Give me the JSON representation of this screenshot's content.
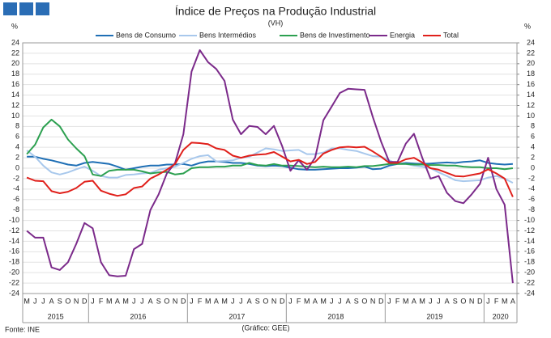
{
  "chart_data": {
    "type": "line",
    "title": "Índice de Preços na Produção Industrial",
    "subtitle": "(VH)",
    "y_unit": "%",
    "source": "Fonte: INE",
    "credit": "(Gráfico: GEE)",
    "categories": [
      "M",
      "J",
      "J",
      "A",
      "S",
      "O",
      "N",
      "D",
      "J",
      "F",
      "M",
      "A",
      "M",
      "J",
      "J",
      "A",
      "S",
      "O",
      "N",
      "D",
      "J",
      "F",
      "M",
      "A",
      "M",
      "J",
      "J",
      "A",
      "S",
      "O",
      "N",
      "D",
      "J",
      "F",
      "M",
      "A",
      "M",
      "J",
      "J",
      "A",
      "S",
      "O",
      "N",
      "D",
      "J",
      "F",
      "M",
      "A",
      "M",
      "J",
      "J",
      "A",
      "S",
      "O",
      "N",
      "D",
      "J",
      "F",
      "M",
      "A"
    ],
    "year_labels": [
      "2015",
      "2016",
      "2017",
      "2018",
      "2019",
      "2020"
    ],
    "year_spans": [
      8,
      12,
      12,
      12,
      12,
      4
    ],
    "ylim": [
      -24,
      24
    ],
    "yticks": [
      -24,
      -22,
      -20,
      -18,
      -16,
      -14,
      -12,
      -10,
      -8,
      -6,
      -4,
      -2,
      0,
      2,
      4,
      6,
      8,
      10,
      12,
      14,
      16,
      18,
      20,
      22,
      24
    ],
    "y2lim": [
      -24,
      24
    ],
    "y2ticks": [
      -24,
      -22,
      -20,
      -18,
      -16,
      -14,
      -12,
      -10,
      -8,
      -6,
      -4,
      -2,
      0,
      2,
      4,
      6,
      8,
      10,
      12,
      14,
      16,
      18,
      20,
      22,
      24
    ],
    "grid": true,
    "legend": "top",
    "series": [
      {
        "name": "Bens de Consumo",
        "color": "#1f6fb5",
        "values": [
          2.2,
          2.2,
          1.8,
          1.5,
          1.1,
          0.7,
          0.5,
          1,
          1.2,
          1,
          0.8,
          0.3,
          -0.3,
          0,
          0.3,
          0.5,
          0.5,
          0.7,
          0.7,
          0.8,
          0.5,
          1,
          1.3,
          1.3,
          1.2,
          1,
          1,
          0.8,
          0.5,
          0.4,
          0.5,
          0.4,
          0.1,
          -0.2,
          -0.3,
          -0.3,
          -0.2,
          -0.1,
          0,
          0,
          0.1,
          0.3,
          -0.2,
          -0.1,
          0.5,
          0.8,
          1,
          0.9,
          0.8,
          0.9,
          1,
          1.1,
          1,
          1.2,
          1.3,
          1.5,
          1,
          0.8,
          0.7,
          0.8
        ]
      },
      {
        "name": "Bens Intermédios",
        "color": "#a8c8ec",
        "values": [
          3.4,
          2.2,
          0.5,
          -0.8,
          -1.2,
          -0.8,
          -0.2,
          0.3,
          -0.5,
          -1.5,
          -1.8,
          -1.8,
          -1.3,
          -1.2,
          -1,
          -0.9,
          -0.3,
          0,
          0.3,
          1,
          1.8,
          2.3,
          2.5,
          1.3,
          1.4,
          1.5,
          2,
          2.2,
          3,
          3.8,
          3.6,
          3.3,
          3.4,
          3.5,
          2.7,
          2.7,
          3,
          3.8,
          3.8,
          3.5,
          3.3,
          2.8,
          2.3,
          2.2,
          1.5,
          0.8,
          0.8,
          0.5,
          0.3,
          0,
          -0.8,
          -1.5,
          -2.3,
          -2.5,
          -2.4,
          -2.3,
          -1.8,
          -1.5,
          -2,
          -2.8
        ]
      },
      {
        "name": "Bens de Investimento",
        "color": "#2ca050",
        "values": [
          2.7,
          4.5,
          7.8,
          9.3,
          8,
          5.5,
          3.8,
          2.3,
          -1.2,
          -1.5,
          -0.5,
          -0.3,
          -0.3,
          -0.3,
          -0.6,
          -1,
          -0.8,
          -0.7,
          -1.2,
          -1,
          0,
          0.2,
          0.2,
          0.3,
          0.3,
          0.5,
          0.5,
          1,
          0.6,
          0.5,
          0.8,
          0.5,
          0.5,
          0.4,
          0.3,
          0.2,
          0.3,
          0.2,
          0.2,
          0.3,
          0.2,
          0.4,
          0.4,
          0.6,
          0.8,
          0.8,
          0.8,
          0.7,
          0.7,
          0.6,
          0.6,
          0.5,
          0.5,
          0.3,
          0.2,
          0.2,
          0,
          0,
          -0.2,
          0
        ]
      },
      {
        "name": "Energia",
        "color": "#7b2a8a",
        "values": [
          -12,
          -13.3,
          -13.3,
          -19,
          -19.5,
          -18,
          -14.5,
          -10.5,
          -11.5,
          -18,
          -20.5,
          -20.7,
          -20.6,
          -15.5,
          -14.5,
          -8,
          -5,
          -1,
          1,
          6.5,
          18.5,
          22.6,
          20.3,
          19,
          16.7,
          9.3,
          6.5,
          8.1,
          7.9,
          6.5,
          8.1,
          4.2,
          -0.5,
          1.5,
          -0.3,
          2,
          9.2,
          11.8,
          14.4,
          15.2,
          15.1,
          15,
          9.8,
          5.1,
          1.2,
          1.2,
          4.7,
          6.6,
          2,
          -2,
          -1.5,
          -4.7,
          -6.3,
          -6.7,
          -5,
          -3,
          2,
          -4,
          -7,
          -22
        ]
      },
      {
        "name": "Total",
        "color": "#e0201b",
        "values": [
          -1.8,
          -2.4,
          -2.5,
          -4.4,
          -4.8,
          -4.5,
          -3.8,
          -2.6,
          -2.4,
          -4.3,
          -4.9,
          -5.3,
          -5,
          -3.8,
          -3.5,
          -2,
          -1.2,
          -0.3,
          0.8,
          3.5,
          4.9,
          4.8,
          4.6,
          3.8,
          3.5,
          2.4,
          2,
          2.4,
          2.6,
          2.7,
          3.1,
          2.2,
          1.3,
          1.6,
          0.8,
          1.2,
          2.8,
          3.5,
          4,
          4.1,
          4,
          4.1,
          3.2,
          2.2,
          1,
          1,
          1.7,
          2,
          1.1,
          0,
          -0.3,
          -0.9,
          -1.5,
          -1.6,
          -1.3,
          -1,
          -0.2,
          -1,
          -2,
          -5.5
        ]
      }
    ]
  }
}
